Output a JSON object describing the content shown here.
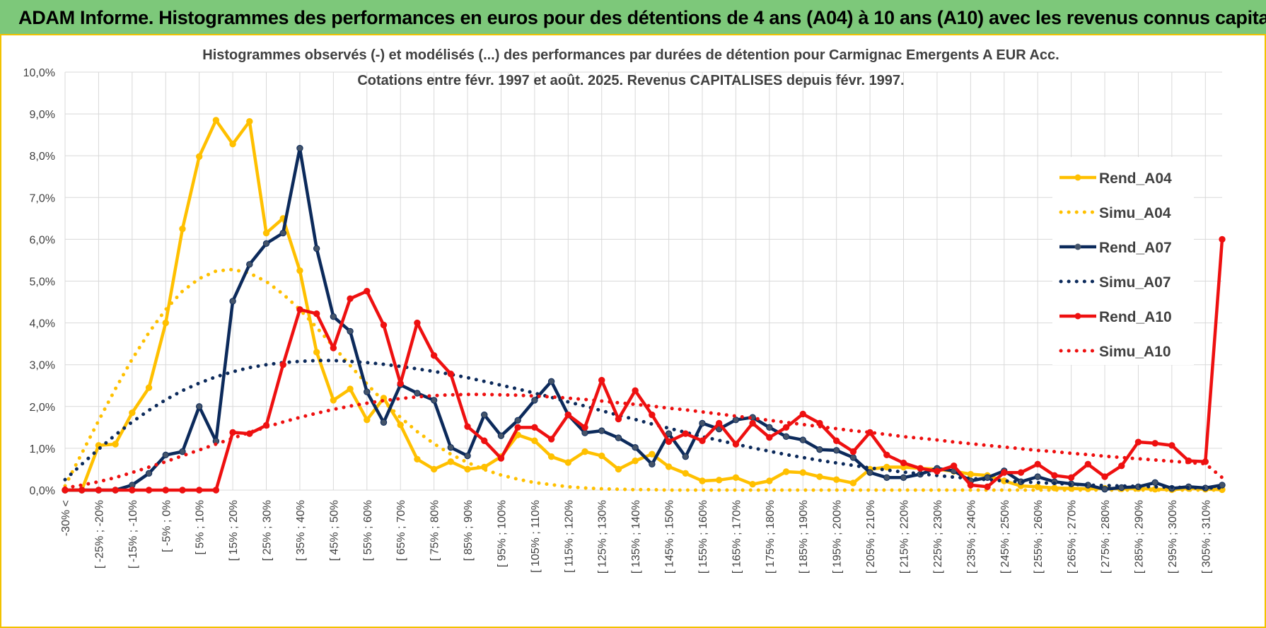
{
  "header": {
    "title": "ADAM Informe. Histogrammes des performances en euros pour des détentions de 4 ans (A04) à 10 ans (A10) avec les revenus connus capitalisés"
  },
  "chart_data": {
    "type": "line",
    "title": "Histogrammes observés (-) et modélisés (...) des performances par durées de détention pour Carmignac Emergents A EUR Acc.",
    "subtitle": "Cotations entre févr. 1997 et août. 2025. Revenus CAPITALISES depuis févr. 1997.",
    "xlabel": "",
    "ylabel": "",
    "ylim": [
      0,
      10
    ],
    "y_ticks": [
      "0,0%",
      "1,0%",
      "2,0%",
      "3,0%",
      "4,0%",
      "5,0%",
      "6,0%",
      "7,0%",
      "8,0%",
      "9,0%",
      "10,0%"
    ],
    "grid": true,
    "legend_position": "right",
    "x_tick_labels": [
      "-30% <",
      "[ -25% ; -20%",
      "[ -15% ; -10%",
      "[ -5% ; 0%",
      "[ 5% ; 10%",
      "[ 15% ; 20%",
      "[ 25% ; 30%",
      "[ 35% ; 40%",
      "[ 45% ; 50%",
      "[ 55% ; 60%",
      "[ 65% ; 70%",
      "[ 75% ; 80%",
      "[ 85% ; 90%",
      "[ 95% ; 100%",
      "[ 105% ; 110%",
      "[ 115% ; 120%",
      "[ 125% ; 130%",
      "[ 135% ; 140%",
      "[ 145% ; 150%",
      "[ 155% ; 160%",
      "[ 165% ; 170%",
      "[ 175% ; 180%",
      "[ 185% ; 190%",
      "[ 195% ; 200%",
      "[ 205% ; 210%",
      "[ 215% ; 220%",
      "[ 225% ; 230%",
      "[ 235% ; 240%",
      "[ 245% ; 250%",
      "[ 255% ; 260%",
      "[ 265% ; 270%",
      "[ 275% ; 280%",
      "[ 285% ; 290%",
      "[ 295% ; 300%",
      "[ 305% ; 310%"
    ],
    "x_count": 70,
    "series": [
      {
        "name": "Rend_A04",
        "style": "solid",
        "color": "#ffc000",
        "values": [
          0.0,
          0.0,
          1.07,
          1.1,
          1.85,
          2.45,
          4.0,
          6.25,
          7.98,
          8.85,
          8.28,
          8.82,
          6.15,
          6.5,
          5.25,
          3.3,
          2.15,
          2.42,
          1.68,
          2.2,
          1.56,
          0.74,
          0.5,
          0.68,
          0.5,
          0.55,
          0.8,
          1.32,
          1.18,
          0.8,
          0.66,
          0.92,
          0.82,
          0.5,
          0.7,
          0.86,
          0.56,
          0.4,
          0.22,
          0.24,
          0.3,
          0.14,
          0.22,
          0.44,
          0.42,
          0.32,
          0.25,
          0.17,
          0.5,
          0.55,
          0.55,
          0.52,
          0.5,
          0.45,
          0.38,
          0.35,
          0.22,
          0.1,
          0.08,
          0.05,
          0.04,
          0.03,
          0.04,
          0.03,
          0.04,
          0.02,
          0.01,
          0.04,
          0.02,
          0.01
        ]
      },
      {
        "name": "Simu_A04",
        "style": "dotted",
        "color": "#ffc000",
        "values": [
          0.1,
          0.88,
          1.66,
          2.42,
          3.13,
          3.77,
          4.32,
          4.76,
          5.06,
          5.24,
          5.28,
          5.19,
          4.99,
          4.69,
          4.32,
          3.89,
          3.44,
          2.98,
          2.54,
          2.12,
          1.74,
          1.4,
          1.11,
          0.86,
          0.66,
          0.49,
          0.36,
          0.26,
          0.18,
          0.13,
          0.08,
          0.05,
          0.03,
          0.02,
          0.01,
          0.01,
          0.0,
          0.0,
          0.0,
          0.0,
          0.0,
          0.0,
          0.0,
          0.0,
          0.0,
          0.0,
          0.0,
          0.0,
          0.0,
          0.0,
          0.0,
          0.0,
          0.0,
          0.0,
          0.0,
          0.0,
          0.0,
          0.0,
          0.0,
          0.0,
          0.0,
          0.0,
          0.0,
          0.0,
          0.0,
          0.0,
          0.0,
          0.0,
          0.0,
          0.0
        ]
      },
      {
        "name": "Rend_A07",
        "style": "solid",
        "color": "#0c2a5b",
        "values": [
          0.0,
          0.0,
          0.0,
          0.0,
          0.12,
          0.4,
          0.84,
          0.92,
          2.0,
          1.17,
          4.52,
          5.4,
          5.9,
          6.15,
          8.18,
          5.78,
          4.15,
          3.8,
          2.35,
          1.62,
          2.52,
          2.32,
          2.15,
          1.02,
          0.82,
          1.8,
          1.3,
          1.67,
          2.15,
          2.6,
          1.8,
          1.37,
          1.42,
          1.25,
          1.02,
          0.62,
          1.35,
          0.8,
          1.6,
          1.46,
          1.68,
          1.74,
          1.5,
          1.28,
          1.2,
          0.97,
          0.95,
          0.78,
          0.42,
          0.3,
          0.3,
          0.38,
          0.52,
          0.46,
          0.22,
          0.3,
          0.46,
          0.2,
          0.32,
          0.2,
          0.15,
          0.12,
          0.02,
          0.06,
          0.08,
          0.18,
          0.04,
          0.08,
          0.05,
          0.12
        ]
      },
      {
        "name": "Simu_A07",
        "style": "dotted",
        "color": "#0c2a5b",
        "values": [
          0.25,
          0.62,
          0.98,
          1.32,
          1.63,
          1.91,
          2.16,
          2.38,
          2.56,
          2.71,
          2.83,
          2.93,
          3.0,
          3.05,
          3.08,
          3.1,
          3.1,
          3.08,
          3.05,
          3.01,
          2.96,
          2.9,
          2.84,
          2.77,
          2.69,
          2.6,
          2.51,
          2.42,
          2.32,
          2.22,
          2.11,
          2.01,
          1.9,
          1.79,
          1.69,
          1.58,
          1.48,
          1.38,
          1.28,
          1.19,
          1.1,
          1.01,
          0.93,
          0.85,
          0.78,
          0.71,
          0.65,
          0.59,
          0.53,
          0.48,
          0.43,
          0.39,
          0.35,
          0.31,
          0.28,
          0.25,
          0.22,
          0.2,
          0.18,
          0.16,
          0.14,
          0.12,
          0.11,
          0.1,
          0.09,
          0.08,
          0.07,
          0.06,
          0.05,
          0.05
        ]
      },
      {
        "name": "Rend_A10",
        "style": "solid",
        "color": "#ee1010",
        "values": [
          0.0,
          0.0,
          0.0,
          0.0,
          0.0,
          0.0,
          0.0,
          0.0,
          0.0,
          0.0,
          1.38,
          1.35,
          1.55,
          3.0,
          4.32,
          4.22,
          3.4,
          4.58,
          4.76,
          3.95,
          2.55,
          4.0,
          3.22,
          2.78,
          1.52,
          1.18,
          0.76,
          1.5,
          1.5,
          1.22,
          1.8,
          1.5,
          2.63,
          1.7,
          2.38,
          1.8,
          1.16,
          1.35,
          1.18,
          1.6,
          1.1,
          1.6,
          1.26,
          1.5,
          1.82,
          1.6,
          1.18,
          0.92,
          1.38,
          0.84,
          0.65,
          0.52,
          0.45,
          0.58,
          0.12,
          0.08,
          0.42,
          0.42,
          0.62,
          0.35,
          0.3,
          0.62,
          0.32,
          0.58,
          1.15,
          1.12,
          1.07,
          0.7,
          0.68,
          6.0
        ]
      },
      {
        "name": "Simu_A10",
        "style": "dotted",
        "color": "#ee1010",
        "values": [
          0.05,
          0.12,
          0.2,
          0.3,
          0.42,
          0.55,
          0.68,
          0.82,
          0.96,
          1.1,
          1.24,
          1.38,
          1.51,
          1.63,
          1.74,
          1.84,
          1.93,
          2.01,
          2.08,
          2.14,
          2.19,
          2.23,
          2.26,
          2.28,
          2.29,
          2.29,
          2.28,
          2.27,
          2.25,
          2.23,
          2.2,
          2.17,
          2.13,
          2.09,
          2.05,
          2.01,
          1.96,
          1.92,
          1.87,
          1.82,
          1.77,
          1.72,
          1.67,
          1.62,
          1.57,
          1.52,
          1.47,
          1.42,
          1.38,
          1.33,
          1.28,
          1.24,
          1.2,
          1.15,
          1.11,
          1.07,
          1.03,
          0.99,
          0.95,
          0.92,
          0.88,
          0.85,
          0.81,
          0.78,
          0.75,
          0.72,
          0.69,
          0.66,
          0.63,
          0.3
        ]
      }
    ]
  }
}
